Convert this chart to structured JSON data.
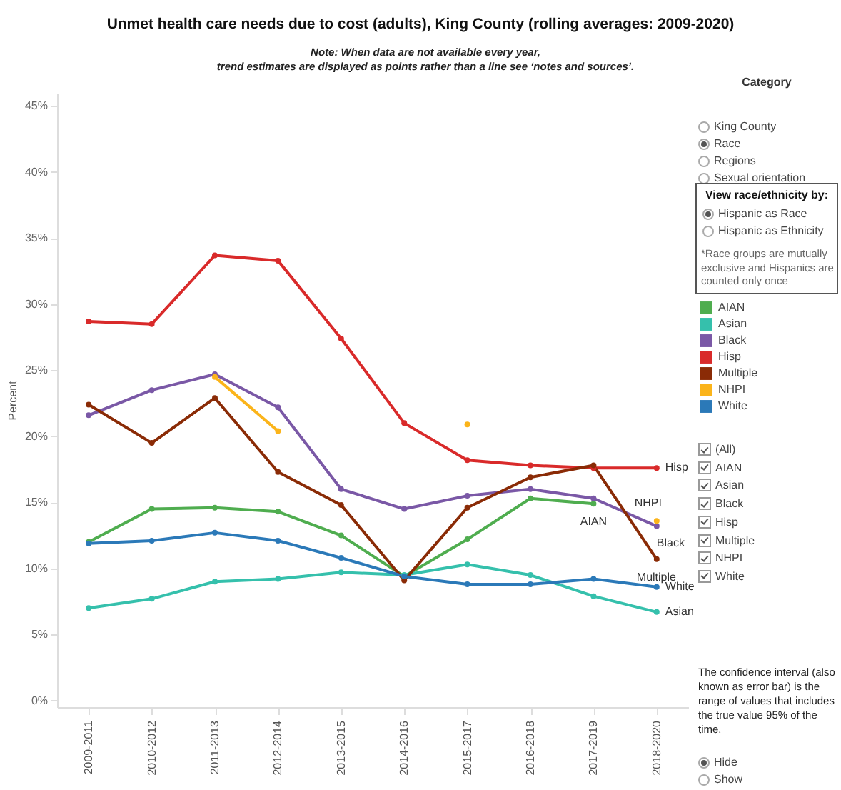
{
  "chart_data": {
    "type": "line",
    "title": "Unmet health care needs due to cost (adults), King County (rolling averages: 2009-2020)",
    "subtitle": "Note: When data are not available every year,\ntrend estimates are displayed as points rather than a line see ‘notes and sources’.",
    "ylabel": "Percent",
    "categories": [
      "2009-2011",
      "2010-2012",
      "2011-2013",
      "2012-2014",
      "2013-2015",
      "2014-2016",
      "2015-2017",
      "2016-2018",
      "2017-2019",
      "2018-2020"
    ],
    "series": [
      {
        "name": "AIAN",
        "color": "#4fad4f",
        "values": [
          12.0,
          14.5,
          14.6,
          14.3,
          12.5,
          9.4,
          12.2,
          15.3,
          14.9,
          null
        ]
      },
      {
        "name": "Asian",
        "color": "#35c0ac",
        "values": [
          7.0,
          7.7,
          9.0,
          9.2,
          9.7,
          9.5,
          10.3,
          9.5,
          7.9,
          6.7
        ]
      },
      {
        "name": "Black",
        "color": "#7a58a6",
        "values": [
          21.6,
          23.5,
          24.7,
          22.2,
          16.0,
          14.5,
          15.5,
          16.0,
          15.3,
          13.2
        ]
      },
      {
        "name": "Hisp",
        "color": "#d92a2a",
        "values": [
          28.7,
          28.5,
          33.7,
          33.3,
          27.4,
          21.0,
          18.2,
          17.8,
          17.6,
          17.6
        ]
      },
      {
        "name": "Multiple",
        "color": "#8a2b06",
        "values": [
          22.4,
          19.5,
          22.9,
          17.3,
          14.8,
          9.1,
          14.6,
          16.9,
          17.8,
          10.7
        ]
      },
      {
        "name": "NHPI",
        "color": "#fbb41a",
        "values": [
          null,
          null,
          24.5,
          20.4,
          null,
          null,
          20.9,
          null,
          null,
          13.6
        ]
      },
      {
        "name": "White",
        "color": "#2b79b8",
        "values": [
          11.9,
          12.1,
          12.7,
          12.1,
          10.8,
          9.4,
          8.8,
          8.8,
          9.2,
          8.6
        ]
      }
    ],
    "ylim": [
      -0.5,
      46
    ],
    "yticks": [
      {
        "value": 0,
        "label": "0%"
      },
      {
        "value": 5,
        "label": "5%"
      },
      {
        "value": 10,
        "label": "10%"
      },
      {
        "value": 15,
        "label": "15%"
      },
      {
        "value": 20,
        "label": "20%"
      },
      {
        "value": 25,
        "label": "25%"
      },
      {
        "value": 30,
        "label": "30%"
      },
      {
        "value": 35,
        "label": "35%"
      },
      {
        "value": 40,
        "label": "40%"
      },
      {
        "value": 45,
        "label": "45%"
      }
    ],
    "grid": false,
    "legend": "right",
    "marker": "circle",
    "line_style": "solid",
    "annotations": [
      "Category",
      "King County",
      "Race",
      "Regions",
      "Sexual orientation",
      "View race/ethnicity by:",
      "Hispanic as Race",
      "Hispanic as Ethnicity",
      "*Race groups are mutually exclusive and Hispanics are counted only once",
      "(All)",
      "AIAN",
      "Asian",
      "Black",
      "Hisp",
      "Multiple",
      "NHPI",
      "White",
      "The confidence interval (also known as error bar) is the range of values that includes the true value 95% of the time.",
      "Hide",
      "Show"
    ]
  }
}
